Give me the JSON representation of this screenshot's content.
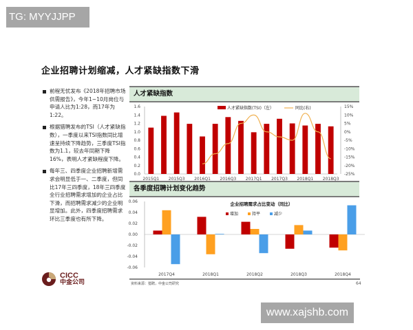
{
  "watermarks": {
    "top": "TG: MYYJJPP",
    "bottom": "www.xajshb.com"
  },
  "slide": {
    "title": "企业招聘计划缩减，人才紧缺指数下滑",
    "bullets": [
      "前程无忧发布《2018年招聘市场供需报告》，今年1~10月岗位与申请人比为1:28，而17年为1:22。",
      "根据猎聘发布的TSI（人才紧缺指数），一季度以来TSI指数同比增速呈持续下降趋势，三季度TSI指数为1.1，较去年同期下降16%，表明人才紧缺程度下降。",
      "每年三、四季度企业招聘新增需求会明显低于一、二季度，但同比17年三四季度，18年三四季度全行业招聘需求增加的企业占比下滑，而招聘需求减少的企业明显增加。此外，四季度招聘需求环比三季度也有所下降。"
    ],
    "panel1_title": "人才紧缺指数",
    "panel2_title": "各季度招聘计划变化趋势",
    "source": "资料来源：猎聘，中金公司研究",
    "page_number": "64",
    "logo": {
      "en": "CICC",
      "cn": "中金公司"
    }
  },
  "colors": {
    "bar_red": "#c00000",
    "line_orange": "#f0b050",
    "flat_orange": "#ffa020",
    "decrease_blue": "#4a9ee8",
    "panel_header_bg": "#d8ead9"
  },
  "chart_data": [
    {
      "type": "bar",
      "title": "人才紧缺指数",
      "categories": [
        "2015Q1",
        "2015Q2",
        "2015Q3",
        "2015Q4",
        "2016Q1",
        "2016Q2",
        "2016Q3",
        "2016Q4",
        "2017Q1",
        "2017Q2",
        "2017Q3",
        "2017Q4",
        "2018Q1",
        "2018Q2",
        "2018Q3"
      ],
      "x_tick_labels": [
        "2015Q1",
        "2015Q3",
        "2016Q1",
        "2016Q3",
        "2017Q1",
        "2017Q3",
        "2018Q1",
        "2018Q3"
      ],
      "series": [
        {
          "name": "人才紧缺指数(TSI)（左）",
          "type": "bar",
          "axis": "left",
          "values": [
            1.1,
            1.38,
            1.46,
            1.19,
            0.89,
            1.19,
            1.35,
            1.26,
            0.99,
            1.19,
            1.31,
            1.2,
            1.15,
            1.19,
            1.13
          ]
        },
        {
          "name": "同比(右)",
          "type": "line",
          "axis": "right",
          "values": [
            null,
            null,
            null,
            null,
            -19,
            -13,
            -7,
            5,
            10,
            0,
            -3,
            -5,
            11,
            0,
            -16
          ]
        }
      ],
      "left_axis": {
        "ylim": [
          0,
          1.6
        ],
        "ticks": [
          "0.0",
          "0.2",
          "0.4",
          "0.6",
          "0.8",
          "1.0",
          "1.2",
          "1.4",
          "1.6"
        ]
      },
      "right_axis": {
        "ylim": [
          -25,
          15
        ],
        "ticks": [
          "-25%",
          "-20%",
          "-15%",
          "-10%",
          "-5%",
          "0%",
          "5%",
          "10%",
          "15%"
        ]
      },
      "legend_position": "top-right"
    },
    {
      "type": "bar",
      "title": "企业招聘需求占比变动（同比）",
      "categories": [
        "2017Q4",
        "2018Q1",
        "2018Q2",
        "2018Q3",
        "2018Q4"
      ],
      "series": [
        {
          "name": "增加",
          "values": [
            0.007,
            0.032,
            0.023,
            -0.026,
            -0.024
          ]
        },
        {
          "name": "持平",
          "values": [
            0.044,
            -0.036,
            0.01,
            0.017,
            -0.029
          ]
        },
        {
          "name": "减少",
          "values": [
            -0.054,
            0.001,
            -0.034,
            0.007,
            0.053
          ]
        }
      ],
      "ylim": [
        -0.06,
        0.06
      ],
      "y_ticks": [
        "0.06",
        "0.04",
        "0.02",
        "0.00",
        "-0.02",
        "-0.04",
        "-0.06"
      ],
      "legend_position": "top-center"
    }
  ]
}
